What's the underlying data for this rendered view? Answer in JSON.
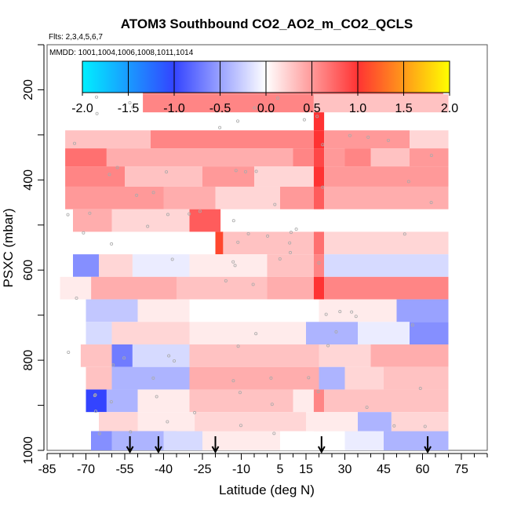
{
  "chart_data": {
    "type": "heatmap",
    "title": "ATOM3 Southbound CO2_AO2_m_CO2_QCLS",
    "flights_note": "Flts: 2,3,4,5,6,7",
    "dates_note": "MMDD: 1001,1004,1006,1008,1011,1014",
    "xlabel": "Latitude (deg N)",
    "ylabel": "PSXC (mbar)",
    "xlim": [
      -85,
      85
    ],
    "ylim": [
      1000,
      100
    ],
    "x_ticks": [
      -85,
      -70,
      -55,
      -40,
      -25,
      -10,
      5,
      15,
      30,
      45,
      60,
      75
    ],
    "x_tick_labels": [
      "-85",
      "-70",
      "-55",
      "-40",
      "-25",
      "-10",
      "5",
      "15",
      "30",
      "45",
      "60",
      "75"
    ],
    "y_ticks": [
      200,
      400,
      600,
      800,
      1000
    ],
    "y_tick_labels": [
      "200",
      "400",
      "600",
      "800",
      "1000"
    ],
    "colorbar": {
      "min": -2.0,
      "max": 2.0,
      "ticks": [
        -2.0,
        -1.5,
        -1.0,
        -0.5,
        0.0,
        0.5,
        1.0,
        1.5,
        2.0
      ],
      "tick_labels": [
        "-2.0",
        "-1.5",
        "-1.0",
        "-0.5",
        "0.0",
        "0.5",
        "1.0",
        "1.5",
        "2.0"
      ],
      "colors": [
        "#00f0ff",
        "#3344ff",
        "#ffffff",
        "#ff3333",
        "#ffff00"
      ]
    },
    "pressure_levels": [
      190,
      230,
      270,
      310,
      350,
      390,
      440,
      490,
      540,
      590,
      640,
      690,
      740,
      790,
      840,
      890,
      940,
      975
    ],
    "cells": [
      [
        -48,
        68,
        0.6
      ],
      [
        -48,
        18,
        0.6
      ],
      [
        18,
        70,
        0.3
      ],
      [
        18,
        22,
        1.0
      ],
      [
        -78,
        -45,
        0.3
      ],
      [
        -45,
        18,
        0.6
      ],
      [
        18,
        22,
        1.0
      ],
      [
        22,
        55,
        0.5
      ],
      [
        55,
        70,
        0.2
      ],
      [
        -78,
        -62,
        0.7
      ],
      [
        -62,
        10,
        0.4
      ],
      [
        10,
        18,
        0.6
      ],
      [
        18,
        22,
        0.9
      ],
      [
        22,
        30,
        0.5
      ],
      [
        30,
        40,
        0.6
      ],
      [
        40,
        55,
        0.3
      ],
      [
        55,
        70,
        0.5
      ],
      [
        -78,
        -55,
        0.6
      ],
      [
        -55,
        -25,
        0.3
      ],
      [
        -25,
        -5,
        0.5
      ],
      [
        -5,
        18,
        0.2
      ],
      [
        18,
        22,
        1.0
      ],
      [
        22,
        70,
        0.5
      ],
      [
        -78,
        -40,
        0.5
      ],
      [
        -40,
        -20,
        0.4
      ],
      [
        -20,
        5,
        0.2
      ],
      [
        5,
        18,
        0.5
      ],
      [
        18,
        22,
        0.8
      ],
      [
        22,
        70,
        0.4
      ],
      [
        -75,
        -60,
        0.4
      ],
      [
        -60,
        -30,
        0.2
      ],
      [
        -30,
        -18,
        0.8
      ],
      [
        -20,
        -17,
        1.1
      ],
      [
        -17,
        18,
        0.3
      ],
      [
        18,
        22,
        0.7
      ],
      [
        22,
        70,
        0.2
      ],
      [
        -75,
        -65,
        -0.6
      ],
      [
        -65,
        -52,
        0.2
      ],
      [
        -52,
        -30,
        -0.1
      ],
      [
        -30,
        0,
        0.1
      ],
      [
        0,
        18,
        0.3
      ],
      [
        18,
        22,
        0.6
      ],
      [
        22,
        70,
        -0.2
      ],
      [
        -80,
        -68,
        0.1
      ],
      [
        -68,
        -35,
        0.4
      ],
      [
        -35,
        0,
        0.3
      ],
      [
        0,
        18,
        0.4
      ],
      [
        18,
        22,
        1.0
      ],
      [
        22,
        70,
        0.6
      ],
      [
        -70,
        -50,
        -0.3
      ],
      [
        -50,
        -30,
        0.1
      ],
      [
        -30,
        20,
        0.0
      ],
      [
        20,
        50,
        0.1
      ],
      [
        50,
        70,
        -0.5
      ],
      [
        -70,
        -60,
        -0.2
      ],
      [
        -60,
        -30,
        0.2
      ],
      [
        -30,
        15,
        0.1
      ],
      [
        15,
        35,
        -0.4
      ],
      [
        35,
        55,
        -0.1
      ],
      [
        55,
        70,
        -0.6
      ],
      [
        -72,
        -60,
        0.3
      ],
      [
        -60,
        -52,
        -0.7
      ],
      [
        -52,
        -30,
        -0.2
      ],
      [
        -30,
        20,
        0.3
      ],
      [
        20,
        40,
        0.2
      ],
      [
        40,
        70,
        0.4
      ],
      [
        -70,
        -60,
        0.3
      ],
      [
        -60,
        -30,
        -0.4
      ],
      [
        -30,
        20,
        0.4
      ],
      [
        20,
        30,
        -0.4
      ],
      [
        30,
        45,
        0.2
      ],
      [
        45,
        70,
        0.3
      ],
      [
        -70,
        -62,
        -1.0
      ],
      [
        -62,
        -50,
        -0.4
      ],
      [
        -50,
        -30,
        0.1
      ],
      [
        -30,
        10,
        0.3
      ],
      [
        10,
        18,
        0.1
      ],
      [
        18,
        22,
        0.6
      ],
      [
        22,
        70,
        0.3
      ],
      [
        -65,
        -50,
        0.2
      ],
      [
        -50,
        -28,
        0.1
      ],
      [
        -28,
        15,
        0.2
      ],
      [
        15,
        35,
        0.1
      ],
      [
        35,
        48,
        -0.4
      ],
      [
        48,
        70,
        0.2
      ],
      [
        -65,
        -50,
        -0.5
      ],
      [
        -50,
        -25,
        0.0
      ],
      [
        -25,
        -12,
        1.1
      ],
      [
        -12,
        15,
        0.3
      ],
      [
        15,
        22,
        0.8
      ],
      [
        22,
        30,
        -1.0
      ],
      [
        30,
        42,
        0.2
      ],
      [
        42,
        55,
        -1.1
      ],
      [
        55,
        70,
        0.3
      ],
      [
        -68,
        -40,
        -0.9
      ],
      [
        -40,
        -20,
        0.0
      ],
      [
        -20,
        15,
        0.1
      ],
      [
        15,
        35,
        0.2
      ],
      [
        35,
        70,
        0.1
      ],
      [
        -68,
        -35,
        -0.6
      ],
      [
        -35,
        -10,
        0.2
      ],
      [
        -10,
        18,
        0.1
      ],
      [
        18,
        22,
        0.4
      ],
      [
        22,
        45,
        -0.1
      ],
      [
        45,
        70,
        -0.4
      ],
      [
        -60,
        -40,
        -0.4
      ],
      [
        -40,
        -25,
        -0.2
      ],
      [
        -25,
        5,
        0.1
      ],
      [
        5,
        30,
        0.0
      ]
    ],
    "arrows_at_latitude": [
      -53,
      -42,
      -20,
      21,
      62
    ]
  }
}
